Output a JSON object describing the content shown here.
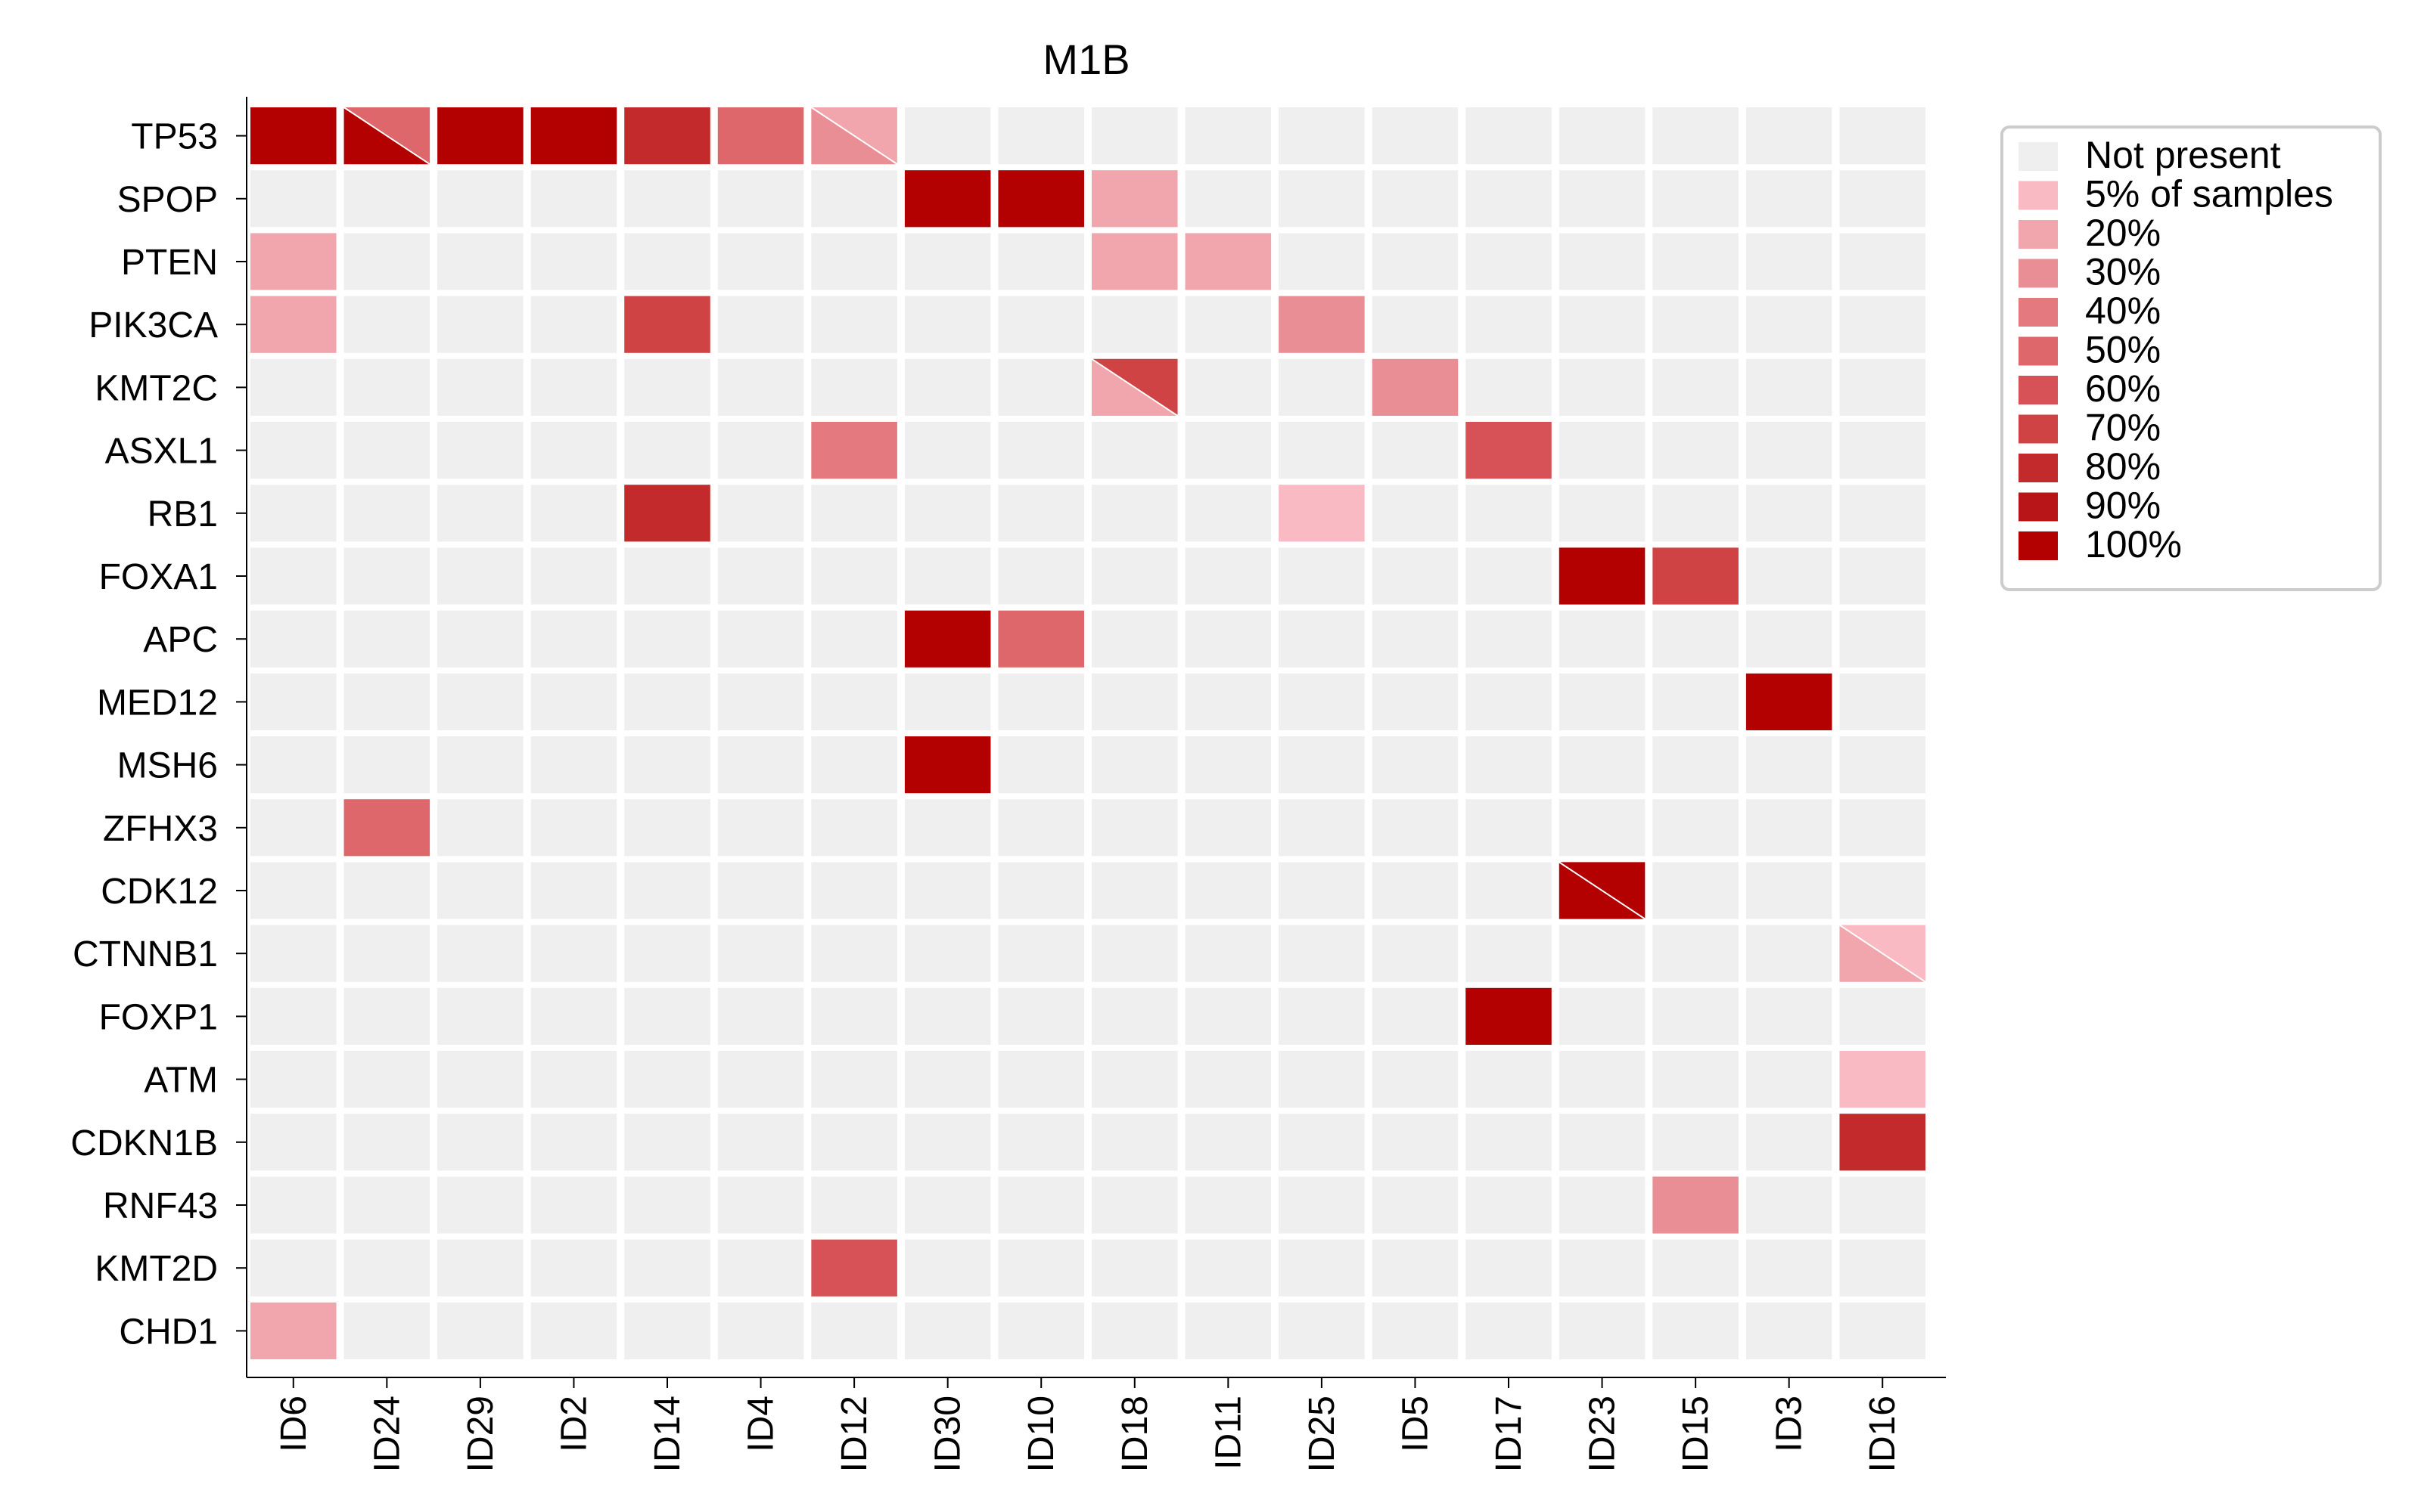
{
  "chart_data": {
    "type": "heatmap",
    "title": "M1B",
    "xlabel": "",
    "ylabel": "",
    "columns": [
      "ID6",
      "ID24",
      "ID29",
      "ID2",
      "ID14",
      "ID4",
      "ID12",
      "ID30",
      "ID10",
      "ID18",
      "ID11",
      "ID25",
      "ID5",
      "ID17",
      "ID23",
      "ID15",
      "ID3",
      "ID16"
    ],
    "rows": [
      "TP53",
      "SPOP",
      "PTEN",
      "PIK3CA",
      "KMT2C",
      "ASXL1",
      "RB1",
      "FOXA1",
      "APC",
      "MED12",
      "MSH6",
      "ZFHX3",
      "CDK12",
      "CTNNB1",
      "FOXP1",
      "ATM",
      "CDKN1B",
      "RNF43",
      "KMT2D",
      "CHD1"
    ],
    "cells": [
      {
        "row": "TP53",
        "col": "ID6",
        "value": 100
      },
      {
        "row": "TP53",
        "col": "ID24",
        "value": 100,
        "value2": 50
      },
      {
        "row": "TP53",
        "col": "ID29",
        "value": 100
      },
      {
        "row": "TP53",
        "col": "ID2",
        "value": 100
      },
      {
        "row": "TP53",
        "col": "ID14",
        "value": 80
      },
      {
        "row": "TP53",
        "col": "ID4",
        "value": 50
      },
      {
        "row": "TP53",
        "col": "ID12",
        "value": 30,
        "value2": 20
      },
      {
        "row": "SPOP",
        "col": "ID30",
        "value": 100
      },
      {
        "row": "SPOP",
        "col": "ID10",
        "value": 100
      },
      {
        "row": "SPOP",
        "col": "ID18",
        "value": 20
      },
      {
        "row": "PTEN",
        "col": "ID6",
        "value": 20
      },
      {
        "row": "PTEN",
        "col": "ID18",
        "value": 20
      },
      {
        "row": "PTEN",
        "col": "ID11",
        "value": 20
      },
      {
        "row": "PIK3CA",
        "col": "ID6",
        "value": 20
      },
      {
        "row": "PIK3CA",
        "col": "ID14",
        "value": 70
      },
      {
        "row": "PIK3CA",
        "col": "ID25",
        "value": 30
      },
      {
        "row": "KMT2C",
        "col": "ID18",
        "value": 20,
        "value2": 70
      },
      {
        "row": "KMT2C",
        "col": "ID5",
        "value": 30
      },
      {
        "row": "ASXL1",
        "col": "ID12",
        "value": 40
      },
      {
        "row": "ASXL1",
        "col": "ID17",
        "value": 60
      },
      {
        "row": "RB1",
        "col": "ID14",
        "value": 80
      },
      {
        "row": "RB1",
        "col": "ID25",
        "value": 5
      },
      {
        "row": "FOXA1",
        "col": "ID23",
        "value": 100
      },
      {
        "row": "FOXA1",
        "col": "ID15",
        "value": 70
      },
      {
        "row": "APC",
        "col": "ID30",
        "value": 100
      },
      {
        "row": "APC",
        "col": "ID10",
        "value": 50
      },
      {
        "row": "MED12",
        "col": "ID3",
        "value": 100
      },
      {
        "row": "MSH6",
        "col": "ID30",
        "value": 100
      },
      {
        "row": "ZFHX3",
        "col": "ID24",
        "value": 50
      },
      {
        "row": "CDK12",
        "col": "ID23",
        "value": 100,
        "value2": 100
      },
      {
        "row": "CTNNB1",
        "col": "ID16",
        "value": 20,
        "value2": 5
      },
      {
        "row": "FOXP1",
        "col": "ID17",
        "value": 100
      },
      {
        "row": "ATM",
        "col": "ID16",
        "value": 5
      },
      {
        "row": "CDKN1B",
        "col": "ID16",
        "value": 80
      },
      {
        "row": "RNF43",
        "col": "ID15",
        "value": 30
      },
      {
        "row": "KMT2D",
        "col": "ID12",
        "value": 60
      },
      {
        "row": "CHD1",
        "col": "ID6",
        "value": 20
      }
    ],
    "legend": {
      "placement": "top-right",
      "entries": [
        {
          "label": "Not present",
          "color": "#efefef"
        },
        {
          "label": "5% of samples",
          "color": "#f9bac4"
        },
        {
          "label": "20%",
          "color": "#f1a5ad"
        },
        {
          "label": "30%",
          "color": "#ea8e95"
        },
        {
          "label": "40%",
          "color": "#e47a80"
        },
        {
          "label": "50%",
          "color": "#de676b"
        },
        {
          "label": "60%",
          "color": "#d65256"
        },
        {
          "label": "70%",
          "color": "#cf4345"
        },
        {
          "label": "80%",
          "color": "#c22a2c"
        },
        {
          "label": "90%",
          "color": "#b81518"
        },
        {
          "label": "100%",
          "color": "#b30000"
        }
      ]
    },
    "colors": {
      "empty": "#efefef",
      "scale": {
        "5": "#f9bac4",
        "20": "#f1a5ad",
        "30": "#ea8e95",
        "40": "#e47a80",
        "50": "#de676b",
        "60": "#d65256",
        "70": "#cf4345",
        "80": "#c22a2c",
        "90": "#b81518",
        "100": "#b30000"
      }
    }
  }
}
